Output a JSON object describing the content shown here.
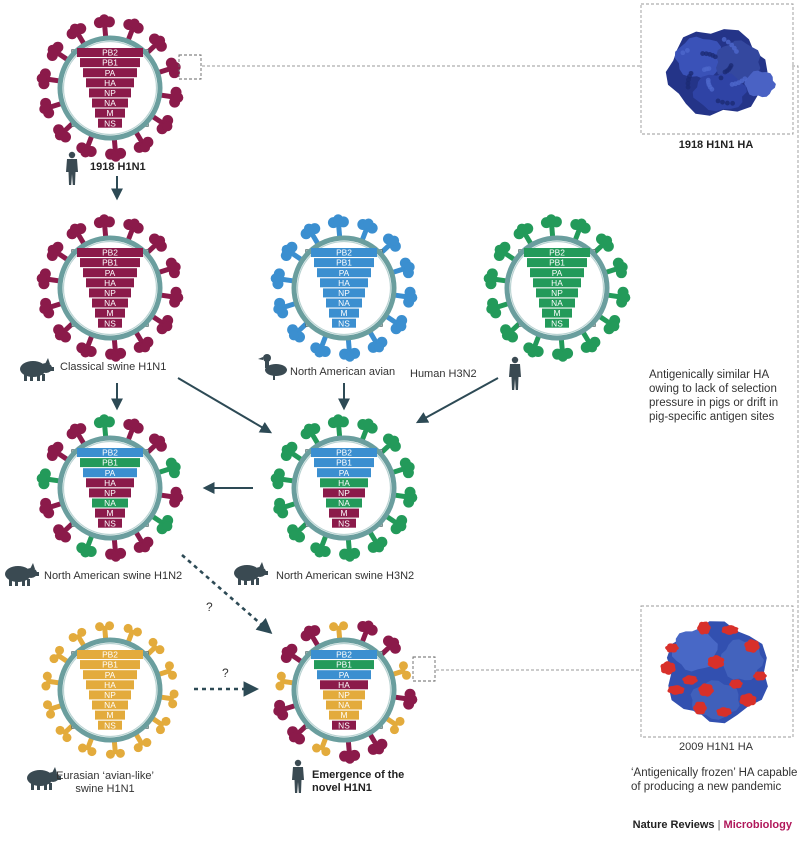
{
  "segments": [
    "PB2",
    "PB1",
    "PA",
    "HA",
    "NP",
    "NA",
    "M",
    "NS"
  ],
  "colors": {
    "human1918": "#8b1a4a",
    "avian": "#3b8fd0",
    "humanH3N2": "#239a5a",
    "eurasian": "#e3ab3c",
    "membrane": "#6a9e9e",
    "arrow": "#2d4a55",
    "silhouette": "#3a4a52",
    "protein_blue": "#2d3f9a",
    "protein_red": "#d8302a"
  },
  "viruses": [
    {
      "id": "v1918",
      "label": "1918 H1N1",
      "host": "human-icon",
      "glyco": [
        "human1918",
        "human1918",
        "human1918",
        "human1918",
        "human1918",
        "human1918",
        "human1918",
        "human1918"
      ],
      "surface": "human1918"
    },
    {
      "id": "vclassical",
      "label": "Classical swine H1N1",
      "host": "pig-icon",
      "glyco": [
        "human1918",
        "human1918",
        "human1918",
        "human1918",
        "human1918",
        "human1918",
        "human1918",
        "human1918"
      ],
      "surface": "human1918"
    },
    {
      "id": "vavian",
      "label": "North American avian",
      "host": "duck-icon",
      "glyco": [
        "avian",
        "avian",
        "avian",
        "avian",
        "avian",
        "avian",
        "avian",
        "avian"
      ],
      "surface": "avian"
    },
    {
      "id": "vh3n2",
      "label": "Human H3N2",
      "host": "human-icon",
      "glyco": [
        "humanH3N2",
        "humanH3N2",
        "humanH3N2",
        "humanH3N2",
        "humanH3N2",
        "humanH3N2",
        "humanH3N2",
        "humanH3N2"
      ],
      "surface": "humanH3N2"
    },
    {
      "id": "vnah1n2",
      "label": "North American swine H1N2",
      "host": "pig-icon",
      "glyco": [
        "avian",
        "humanH3N2",
        "avian",
        "human1918",
        "human1918",
        "humanH3N2",
        "human1918",
        "human1918"
      ],
      "surface": "human1918",
      "surface2": "humanH3N2"
    },
    {
      "id": "vnah3n2",
      "label": "North American swine H3N2",
      "host": "pig-icon",
      "glyco": [
        "avian",
        "avian",
        "avian",
        "humanH3N2",
        "human1918",
        "humanH3N2",
        "human1918",
        "human1918"
      ],
      "surface": "humanH3N2"
    },
    {
      "id": "veurasian",
      "label": "Eurasian ‘avian-like’ swine H1N1",
      "label_line1": "Eurasian ‘avian-like’",
      "label_line2": "swine H1N1",
      "host": "pig-icon",
      "glyco": [
        "eurasian",
        "eurasian",
        "eurasian",
        "eurasian",
        "eurasian",
        "eurasian",
        "eurasian",
        "eurasian"
      ],
      "surface": "eurasian"
    },
    {
      "id": "vnovel",
      "label": "Emergence of the novel H1N1",
      "label_line1": "Emergence of the",
      "label_line2": "novel H1N1",
      "host": "human-icon",
      "glyco": [
        "avian",
        "humanH3N2",
        "avian",
        "human1918",
        "eurasian",
        "eurasian",
        "eurasian",
        "human1918"
      ],
      "surface": "human1918",
      "surface2": "eurasian"
    }
  ],
  "question_marks": [
    "?",
    "?"
  ],
  "proteins": [
    {
      "id": "ha1918",
      "label": "1918 H1N1 HA"
    },
    {
      "id": "ha2009",
      "label": "2009 H1N1 HA"
    }
  ],
  "notes": {
    "similar": [
      "Antigenically similar HA",
      "owing to lack of selection",
      "pressure in pigs or drift in",
      "pig-specific antigen sites"
    ],
    "frozen": [
      "‘Antigenically frozen’ HA capable",
      "of producing a new pandemic"
    ]
  },
  "credit": {
    "journal": "Nature Reviews",
    "separator": "|",
    "section": "Microbiology"
  }
}
